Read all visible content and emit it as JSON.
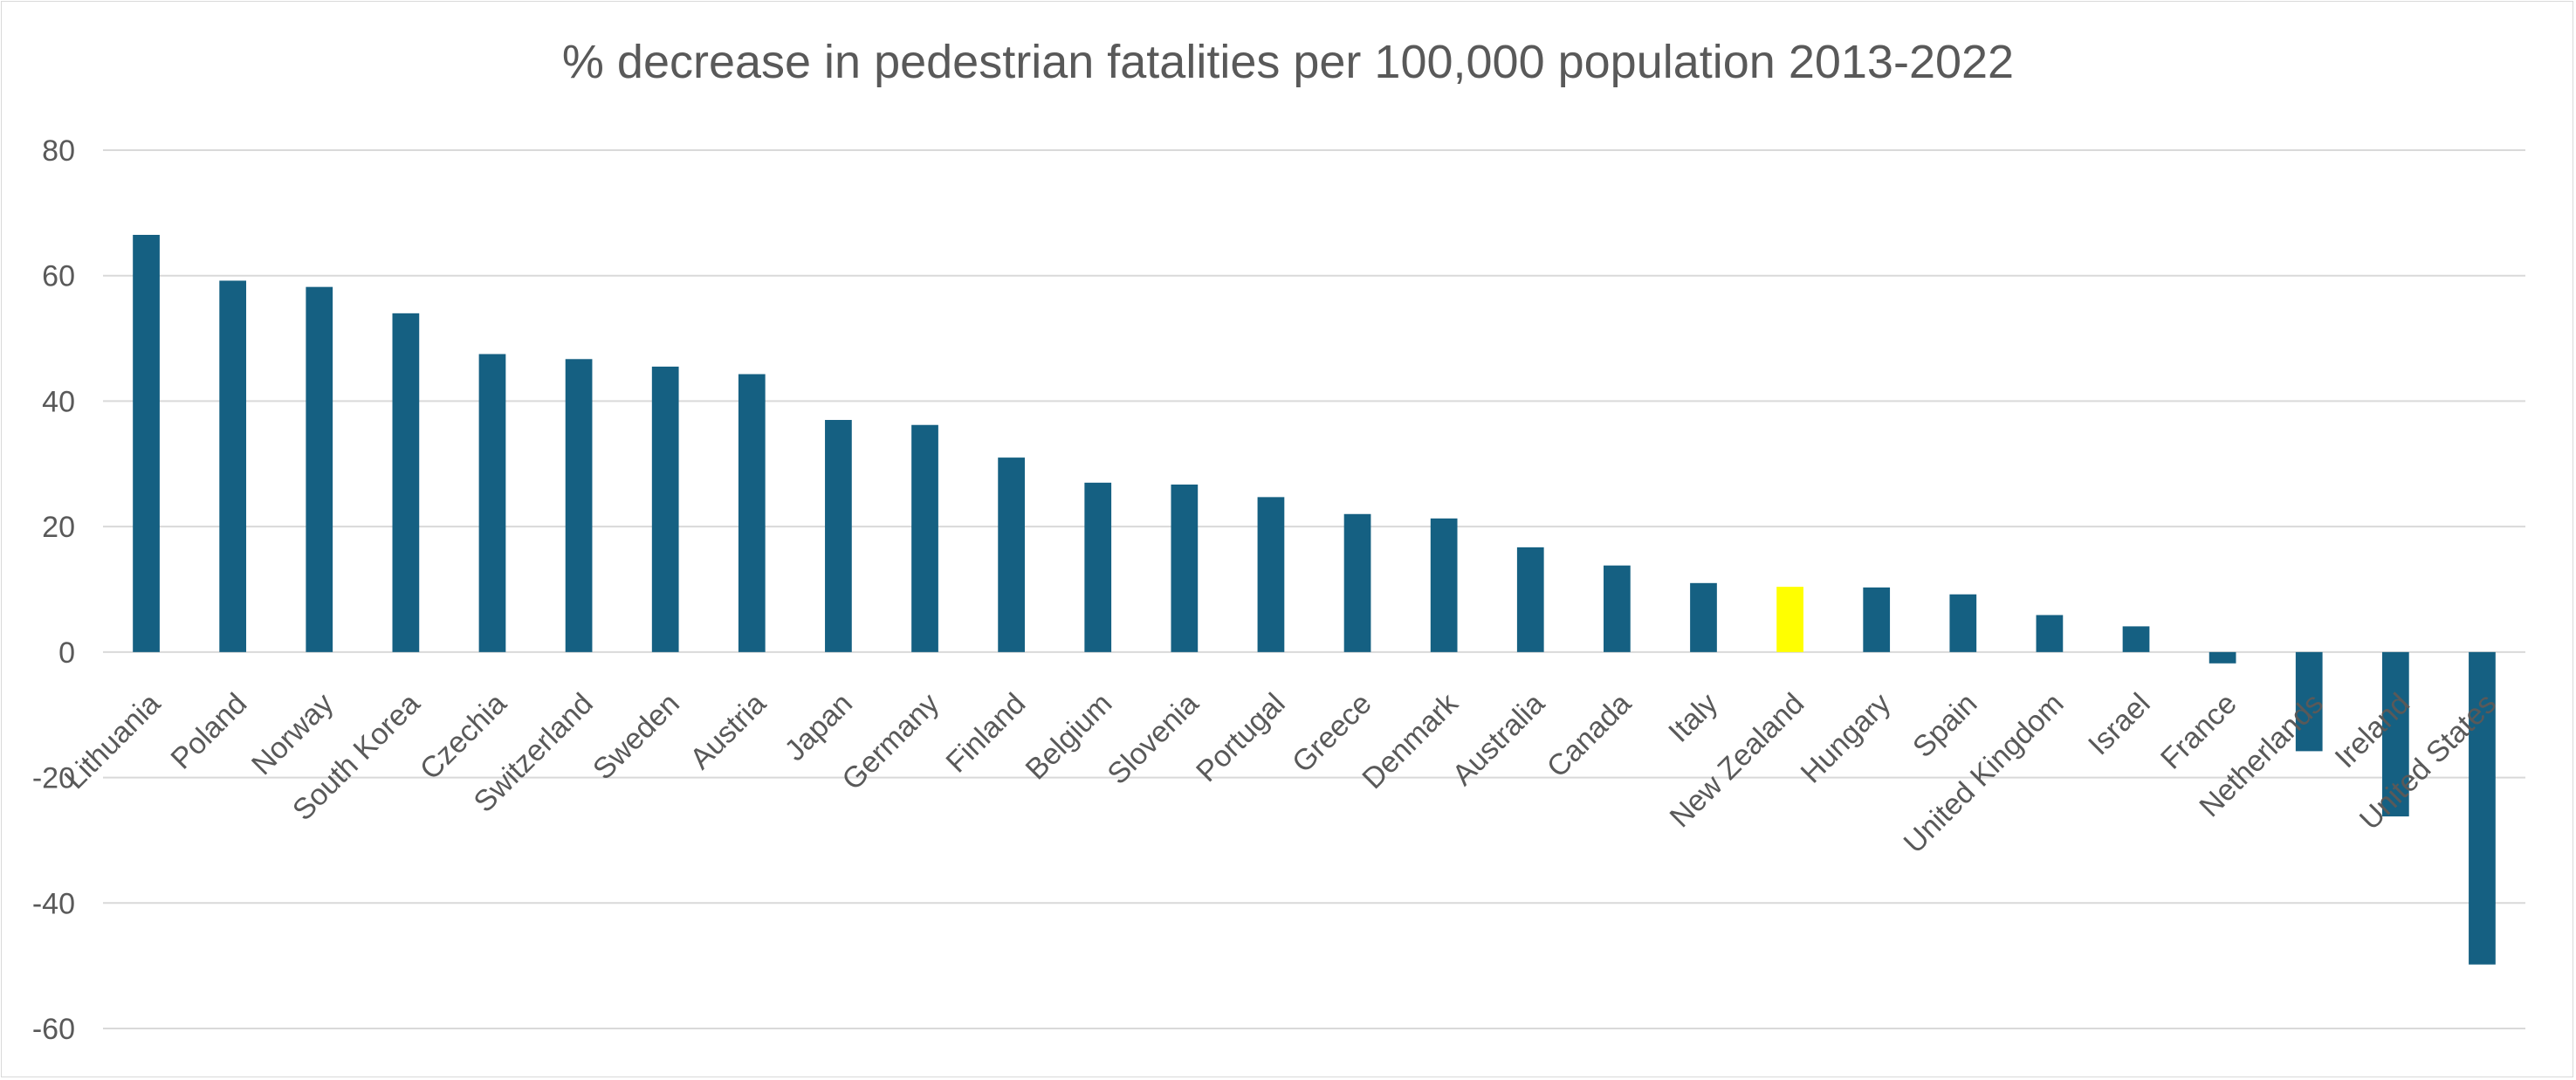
{
  "chart_data": {
    "type": "bar",
    "title": "% decrease in pedestrian fatalities per 100,000 population 2013-2022",
    "xlabel": "",
    "ylabel": "",
    "ylim": [
      -60,
      80
    ],
    "yticks": [
      "80",
      "60",
      "40",
      "20",
      "0",
      "-20",
      "-40",
      "-60"
    ],
    "grid": true,
    "legend": "none",
    "bar_color": "#156082",
    "highlight_color": "#FFFF00",
    "highlight_category": "New Zealand",
    "categories": [
      "Lithuania",
      "Poland",
      "Norway",
      "South Korea",
      "Czechia",
      "Switzerland",
      "Sweden",
      "Austria",
      "Japan",
      "Germany",
      "Finland",
      "Belgium",
      "Slovenia",
      "Portugal",
      "Greece",
      "Denmark",
      "Australia",
      "Canada",
      "Italy",
      "New Zealand",
      "Hungary",
      "Spain",
      "United Kingdom",
      "Israel",
      "France",
      "Netherlands",
      "Ireland",
      "United States"
    ],
    "values": [
      66.5,
      59.2,
      58.2,
      54.0,
      47.5,
      46.7,
      45.5,
      44.3,
      37.0,
      36.2,
      31.0,
      27.0,
      26.7,
      24.7,
      22.0,
      21.3,
      16.7,
      13.8,
      11.0,
      10.4,
      10.3,
      9.2,
      5.9,
      4.1,
      -1.8,
      -15.8,
      -26.2,
      -49.8
    ]
  }
}
